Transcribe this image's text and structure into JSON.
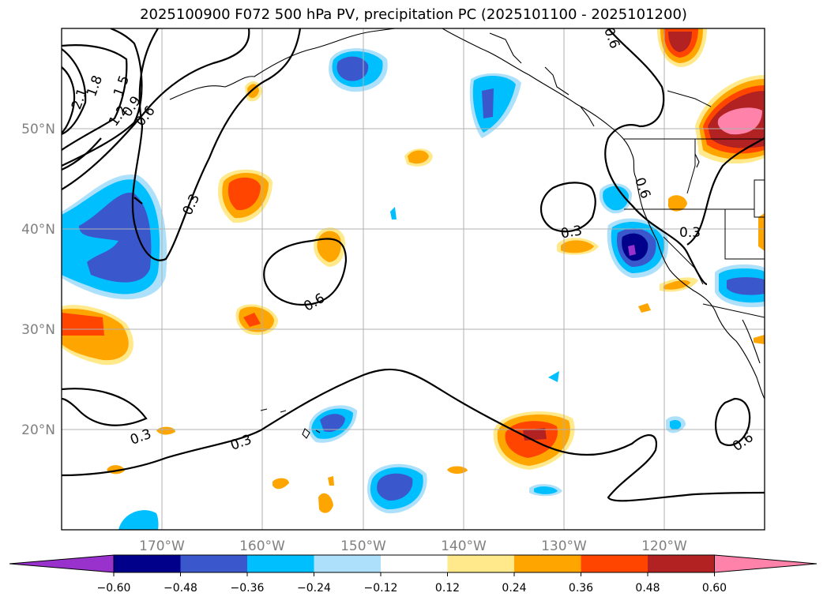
{
  "title": "2025100900 F072 500 hPa PV, precipitation PC (2025101100 - 2025101200)",
  "map": {
    "lat_labels": [
      "50°N",
      "40°N",
      "30°N",
      "20°N"
    ],
    "lon_labels": [
      "170°W",
      "160°W",
      "150°W",
      "140°W",
      "130°W",
      "120°W"
    ],
    "contour_labels": [
      "2.1",
      "1.8",
      "1.5",
      "1.2",
      "0.9",
      "0.6",
      "0.3",
      "0.3",
      "0.6",
      "0.3",
      "0.3",
      "0.3",
      "0.6",
      "0.6",
      "0.6"
    ]
  },
  "colorbar": {
    "ticks": [
      "−0.60",
      "−0.48",
      "−0.36",
      "−0.24",
      "−0.12",
      "0.12",
      "0.24",
      "0.36",
      "0.48",
      "0.60"
    ],
    "colors": [
      "#9932CC",
      "#00008B",
      "#3A57CC",
      "#00BFFF",
      "#ADE0FA",
      "#FFFFFF",
      "#FFE98A",
      "#FFA500",
      "#FF4500",
      "#B22222",
      "#FF82AB"
    ]
  }
}
